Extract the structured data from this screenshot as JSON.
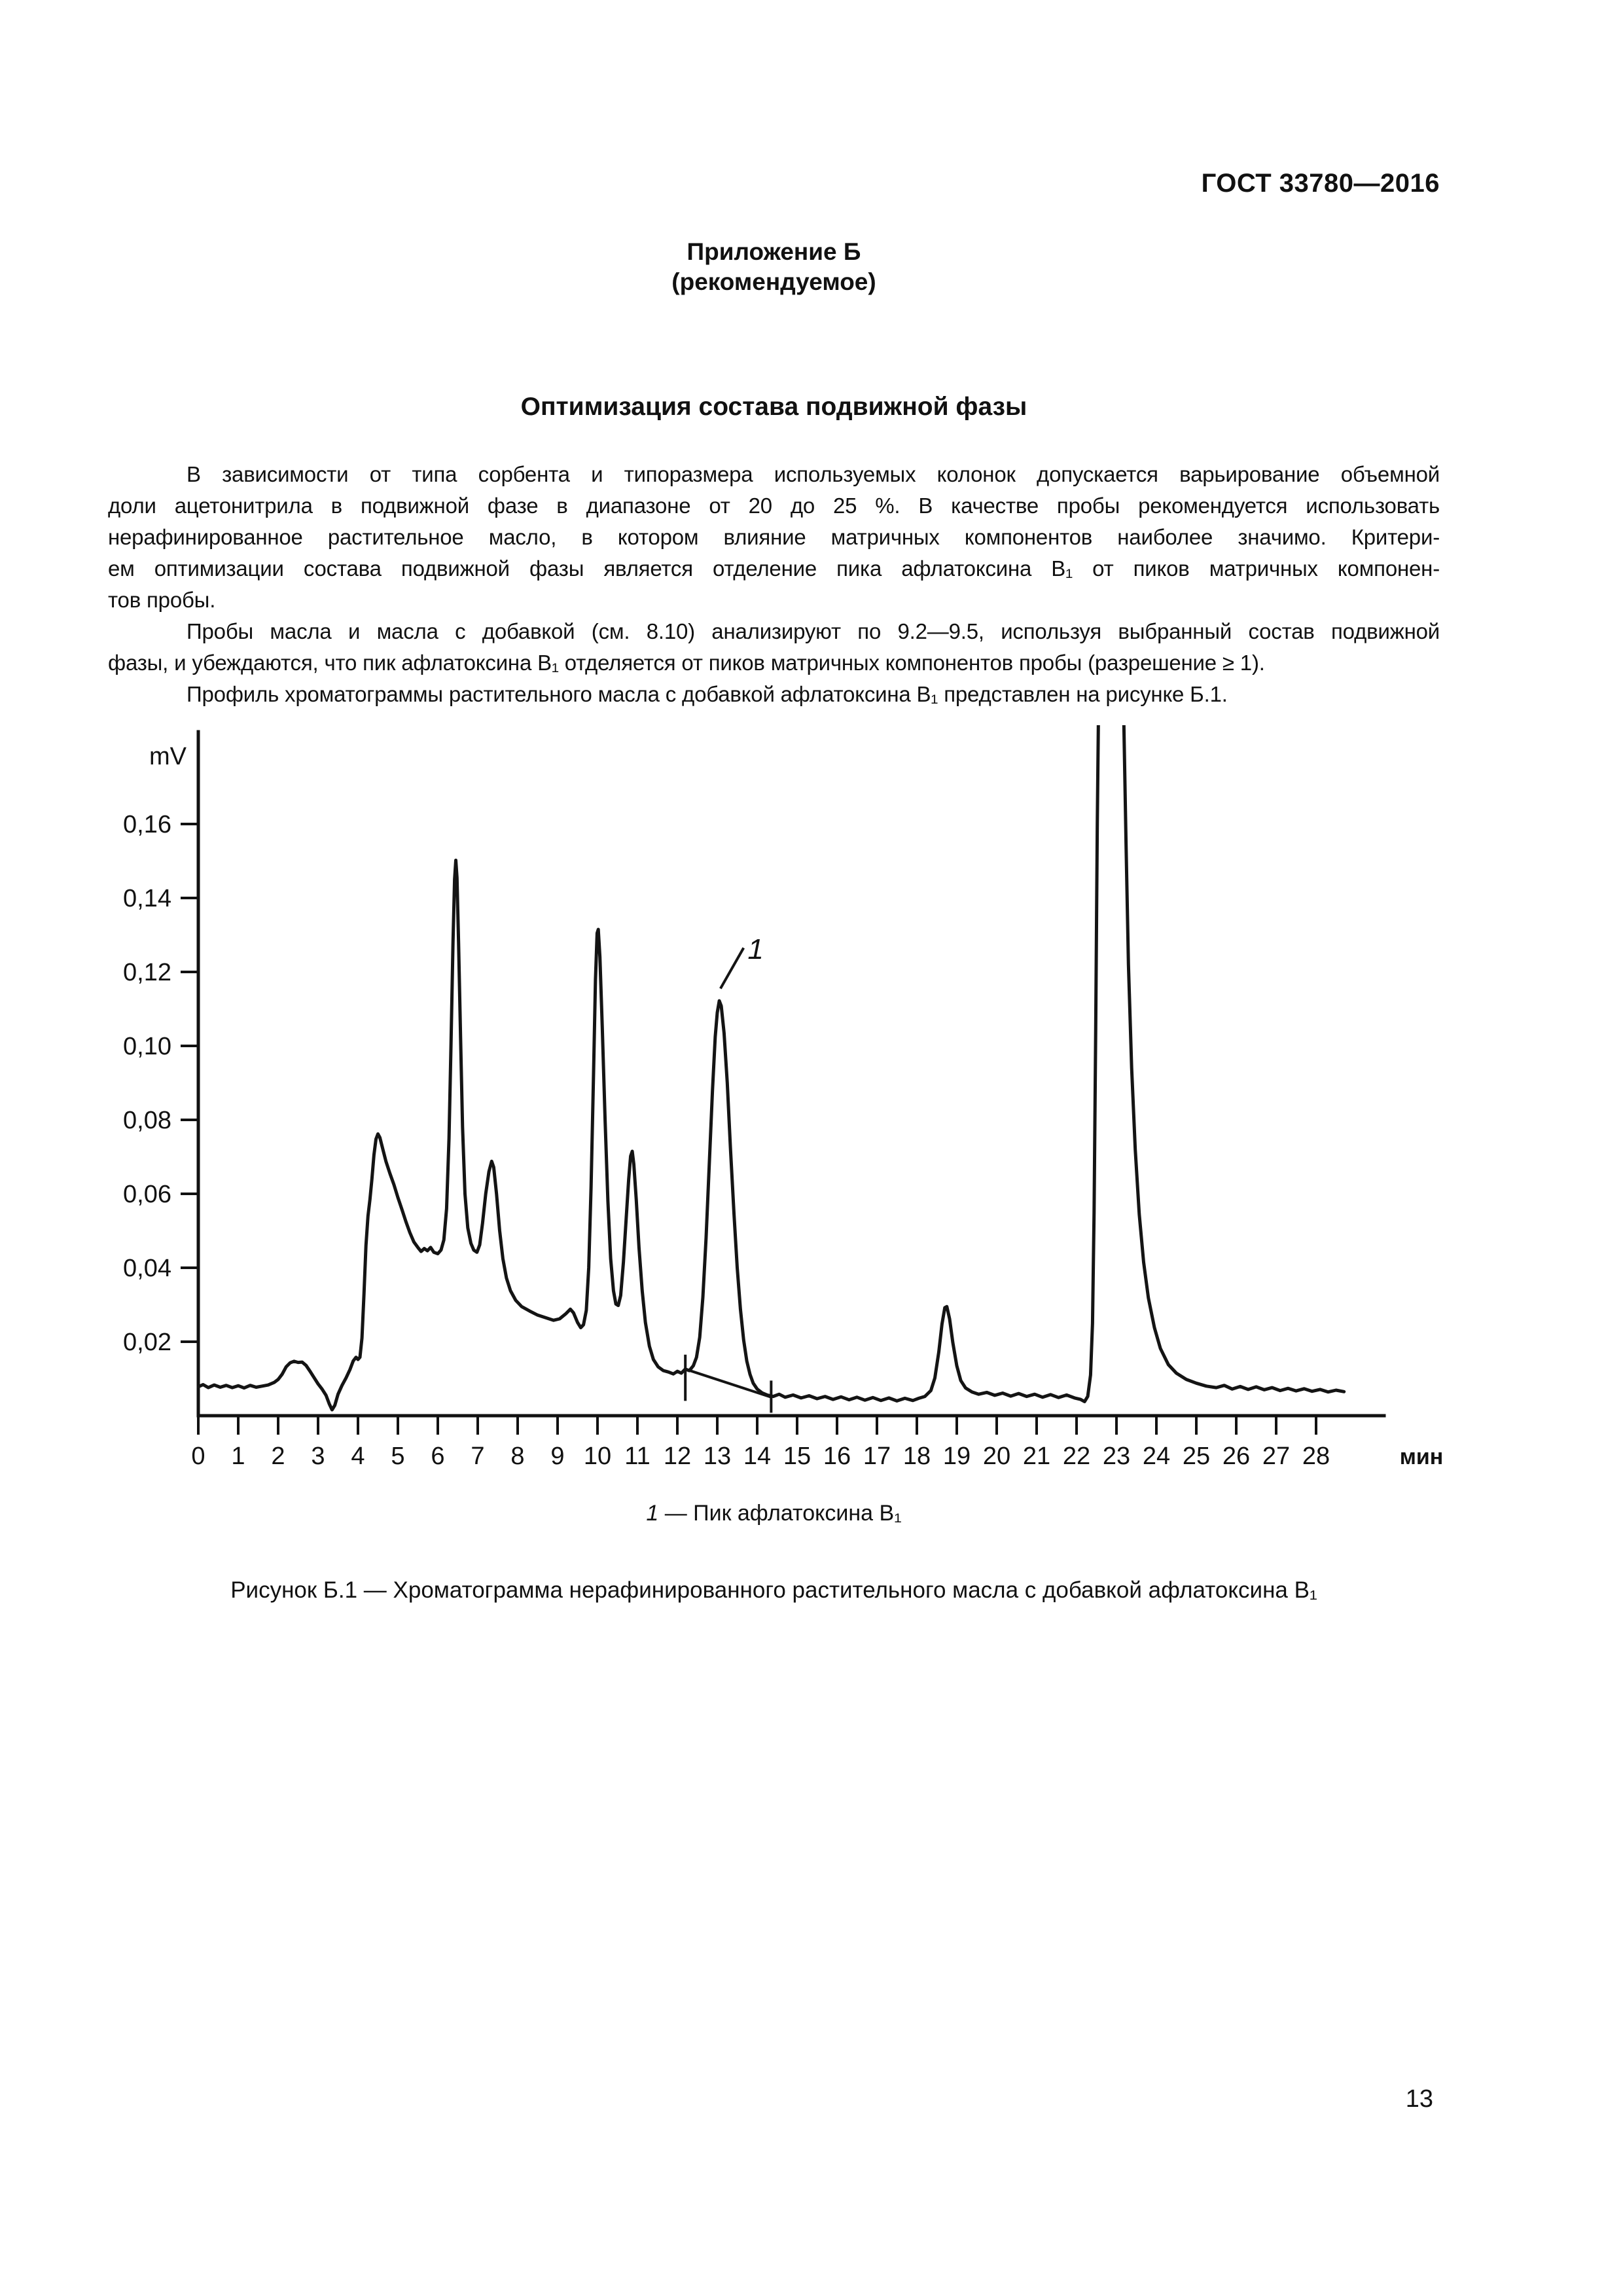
{
  "page": {
    "number": "13"
  },
  "header": {
    "doc_number": "ГОСТ 33780—2016"
  },
  "annex": {
    "title": "Приложение Б",
    "subtitle": "(рекомендуемое)"
  },
  "section": {
    "title": "Оптимизация состава подвижной фазы"
  },
  "body": {
    "lines": [
      {
        "text": "В зависимости от типа сорбента и типоразмера используемых колонок допускается варьирование объемной",
        "indent": true,
        "justify": true
      },
      {
        "text": "доли ацетонитрила в подвижной фазе в диапазоне от 20 до 25 %. В качестве пробы рекомендуется использовать",
        "indent": false,
        "justify": true
      },
      {
        "text": "нерафинированное растительное масло, в котором влияние матричных компонентов наиболее значимо. Критери-",
        "indent": false,
        "justify": true
      },
      {
        "text": "ем оптимизации состава подвижной фазы является отделение пика афлатоксина B₁ от пиков матричных компонен-",
        "indent": false,
        "justify": true
      },
      {
        "text": "тов пробы.",
        "indent": false,
        "justify": false
      },
      {
        "text": "Пробы масла и масла с добавкой (см. 8.10) анализируют по 9.2—9.5, используя выбранный состав подвижной",
        "indent": true,
        "justify": true
      },
      {
        "text": "фазы, и убеждаются, что пик афлатоксина B₁ отделяется от пиков матричных компонентов пробы (разрешение ≥ 1).",
        "indent": false,
        "justify": false
      },
      {
        "text": "Профиль хроматограммы растительного масла с добавкой афлатоксина B₁ представлен на рисунке Б.1.",
        "indent": true,
        "justify": false
      }
    ]
  },
  "figure": {
    "legend_num": "1",
    "legend_text": " — Пик афлатоксина B₁",
    "caption": "Рисунок  Б.1 — Хроматограмма нерафинированного растительного масла с добавкой афлатоксина B₁"
  },
  "chart_data": {
    "type": "line",
    "title": "",
    "xlabel": "мин",
    "ylabel": "mV",
    "x_range": [
      0,
      29
    ],
    "y_range": [
      0,
      0.186
    ],
    "grid": false,
    "legend_position": "below",
    "axis_color": "#111111",
    "trace_color": "#141414",
    "x_ticks": [
      0,
      1,
      2,
      3,
      4,
      5,
      6,
      7,
      8,
      9,
      10,
      11,
      12,
      13,
      14,
      15,
      16,
      17,
      18,
      19,
      20,
      21,
      22,
      23,
      24,
      25,
      26,
      27,
      28
    ],
    "y_ticks": [
      {
        "v": 0.02,
        "label": "0,02"
      },
      {
        "v": 0.04,
        "label": "0,04"
      },
      {
        "v": 0.06,
        "label": "0,06"
      },
      {
        "v": 0.08,
        "label": "0,08"
      },
      {
        "v": 0.1,
        "label": "0,10"
      },
      {
        "v": 0.12,
        "label": "0,12"
      },
      {
        "v": 0.14,
        "label": "0,14"
      },
      {
        "v": 0.16,
        "label": "0,16"
      }
    ],
    "peaks_summary": [
      {
        "t": 4.5,
        "mv": 0.076
      },
      {
        "t": 6.45,
        "mv": 0.15
      },
      {
        "t": 7.35,
        "mv": 0.069
      },
      {
        "t": 10.0,
        "mv": 0.132
      },
      {
        "t": 10.87,
        "mv": 0.072
      },
      {
        "t": 13.05,
        "mv": 0.112,
        "name": "aflatoxin B1 (peak 1)"
      },
      {
        "t": 18.75,
        "mv": 0.03
      },
      {
        "t": 23.0,
        "mv": 0.186,
        "clipped": true
      }
    ],
    "series": [
      {
        "name": "chromatogram",
        "points": [
          [
            0,
            0.0078
          ],
          [
            0.12,
            0.0084
          ],
          [
            0.25,
            0.0076
          ],
          [
            0.4,
            0.0083
          ],
          [
            0.55,
            0.0077
          ],
          [
            0.7,
            0.0082
          ],
          [
            0.85,
            0.0076
          ],
          [
            1.0,
            0.0081
          ],
          [
            1.15,
            0.0075
          ],
          [
            1.3,
            0.0082
          ],
          [
            1.45,
            0.0077
          ],
          [
            1.6,
            0.008
          ],
          [
            1.75,
            0.0083
          ],
          [
            1.9,
            0.009
          ],
          [
            2.0,
            0.0098
          ],
          [
            2.1,
            0.0112
          ],
          [
            2.2,
            0.0132
          ],
          [
            2.3,
            0.0143
          ],
          [
            2.4,
            0.0147
          ],
          [
            2.5,
            0.0144
          ],
          [
            2.6,
            0.0145
          ],
          [
            2.7,
            0.0136
          ],
          [
            2.8,
            0.012
          ],
          [
            2.9,
            0.0103
          ],
          [
            3.0,
            0.0086
          ],
          [
            3.1,
            0.0072
          ],
          [
            3.2,
            0.0055
          ],
          [
            3.28,
            0.0032
          ],
          [
            3.35,
            0.0016
          ],
          [
            3.42,
            0.0028
          ],
          [
            3.5,
            0.0058
          ],
          [
            3.6,
            0.0082
          ],
          [
            3.7,
            0.0102
          ],
          [
            3.8,
            0.0125
          ],
          [
            3.88,
            0.0148
          ],
          [
            3.95,
            0.0158
          ],
          [
            4.0,
            0.0152
          ],
          [
            4.05,
            0.0158
          ],
          [
            4.1,
            0.021
          ],
          [
            4.15,
            0.033
          ],
          [
            4.2,
            0.046
          ],
          [
            4.25,
            0.054
          ],
          [
            4.3,
            0.0585
          ],
          [
            4.35,
            0.064
          ],
          [
            4.4,
            0.0705
          ],
          [
            4.45,
            0.0748
          ],
          [
            4.5,
            0.0762
          ],
          [
            4.55,
            0.0752
          ],
          [
            4.62,
            0.0722
          ],
          [
            4.7,
            0.0688
          ],
          [
            4.8,
            0.0655
          ],
          [
            4.9,
            0.0625
          ],
          [
            5.0,
            0.059
          ],
          [
            5.1,
            0.0558
          ],
          [
            5.2,
            0.0525
          ],
          [
            5.3,
            0.0495
          ],
          [
            5.4,
            0.047
          ],
          [
            5.5,
            0.0455
          ],
          [
            5.58,
            0.0444
          ],
          [
            5.66,
            0.0452
          ],
          [
            5.74,
            0.0446
          ],
          [
            5.82,
            0.0455
          ],
          [
            5.9,
            0.0442
          ],
          [
            6.0,
            0.0438
          ],
          [
            6.08,
            0.0448
          ],
          [
            6.15,
            0.0475
          ],
          [
            6.22,
            0.056
          ],
          [
            6.28,
            0.075
          ],
          [
            6.33,
            0.1
          ],
          [
            6.38,
            0.128
          ],
          [
            6.42,
            0.145
          ],
          [
            6.45,
            0.1502
          ],
          [
            6.48,
            0.1455
          ],
          [
            6.52,
            0.128
          ],
          [
            6.57,
            0.102
          ],
          [
            6.62,
            0.078
          ],
          [
            6.68,
            0.06
          ],
          [
            6.75,
            0.0508
          ],
          [
            6.83,
            0.0466
          ],
          [
            6.9,
            0.0448
          ],
          [
            6.98,
            0.0442
          ],
          [
            7.05,
            0.0462
          ],
          [
            7.12,
            0.052
          ],
          [
            7.2,
            0.06
          ],
          [
            7.28,
            0.066
          ],
          [
            7.35,
            0.0688
          ],
          [
            7.4,
            0.0672
          ],
          [
            7.47,
            0.06
          ],
          [
            7.55,
            0.05
          ],
          [
            7.63,
            0.0425
          ],
          [
            7.72,
            0.0372
          ],
          [
            7.82,
            0.0338
          ],
          [
            7.95,
            0.0312
          ],
          [
            8.1,
            0.0295
          ],
          [
            8.3,
            0.0283
          ],
          [
            8.5,
            0.0272
          ],
          [
            8.7,
            0.0265
          ],
          [
            8.9,
            0.0258
          ],
          [
            9.05,
            0.0262
          ],
          [
            9.2,
            0.0275
          ],
          [
            9.32,
            0.0288
          ],
          [
            9.4,
            0.0278
          ],
          [
            9.5,
            0.0252
          ],
          [
            9.58,
            0.0238
          ],
          [
            9.65,
            0.0246
          ],
          [
            9.72,
            0.0285
          ],
          [
            9.78,
            0.04
          ],
          [
            9.84,
            0.062
          ],
          [
            9.9,
            0.092
          ],
          [
            9.95,
            0.118
          ],
          [
            9.99,
            0.1305
          ],
          [
            10.02,
            0.1315
          ],
          [
            10.06,
            0.124
          ],
          [
            10.12,
            0.105
          ],
          [
            10.19,
            0.08
          ],
          [
            10.26,
            0.058
          ],
          [
            10.33,
            0.0425
          ],
          [
            10.4,
            0.0338
          ],
          [
            10.46,
            0.0302
          ],
          [
            10.52,
            0.0298
          ],
          [
            10.58,
            0.0325
          ],
          [
            10.65,
            0.0415
          ],
          [
            10.72,
            0.0535
          ],
          [
            10.78,
            0.0638
          ],
          [
            10.83,
            0.0702
          ],
          [
            10.87,
            0.0715
          ],
          [
            10.91,
            0.068
          ],
          [
            10.97,
            0.0585
          ],
          [
            11.04,
            0.0455
          ],
          [
            11.12,
            0.0338
          ],
          [
            11.2,
            0.0252
          ],
          [
            11.3,
            0.0188
          ],
          [
            11.4,
            0.0152
          ],
          [
            11.52,
            0.0132
          ],
          [
            11.65,
            0.0122
          ],
          [
            11.78,
            0.0118
          ],
          [
            11.9,
            0.0113
          ],
          [
            12.0,
            0.012
          ],
          [
            12.1,
            0.0115
          ],
          [
            12.2,
            0.0126
          ],
          [
            12.3,
            0.0122
          ],
          [
            12.4,
            0.0135
          ],
          [
            12.48,
            0.0158
          ],
          [
            12.56,
            0.0212
          ],
          [
            12.64,
            0.032
          ],
          [
            12.72,
            0.048
          ],
          [
            12.8,
            0.068
          ],
          [
            12.88,
            0.088
          ],
          [
            12.95,
            0.1025
          ],
          [
            13.0,
            0.109
          ],
          [
            13.05,
            0.1122
          ],
          [
            13.1,
            0.1108
          ],
          [
            13.17,
            0.1035
          ],
          [
            13.25,
            0.09
          ],
          [
            13.33,
            0.0725
          ],
          [
            13.42,
            0.0545
          ],
          [
            13.5,
            0.04
          ],
          [
            13.58,
            0.0288
          ],
          [
            13.66,
            0.0205
          ],
          [
            13.74,
            0.0148
          ],
          [
            13.82,
            0.0112
          ],
          [
            13.9,
            0.0088
          ],
          [
            14.0,
            0.0072
          ],
          [
            14.12,
            0.0062
          ],
          [
            14.25,
            0.0056
          ],
          [
            14.4,
            0.0052
          ],
          [
            14.55,
            0.0058
          ],
          [
            14.7,
            0.005
          ],
          [
            14.9,
            0.0056
          ],
          [
            15.1,
            0.0048
          ],
          [
            15.3,
            0.0054
          ],
          [
            15.5,
            0.0046
          ],
          [
            15.7,
            0.0052
          ],
          [
            15.9,
            0.0044
          ],
          [
            16.1,
            0.0051
          ],
          [
            16.3,
            0.0043
          ],
          [
            16.5,
            0.005
          ],
          [
            16.7,
            0.0042
          ],
          [
            16.9,
            0.0049
          ],
          [
            17.1,
            0.0041
          ],
          [
            17.3,
            0.0048
          ],
          [
            17.5,
            0.004
          ],
          [
            17.7,
            0.0047
          ],
          [
            17.9,
            0.0041
          ],
          [
            18.05,
            0.0047
          ],
          [
            18.2,
            0.0052
          ],
          [
            18.35,
            0.0068
          ],
          [
            18.45,
            0.0102
          ],
          [
            18.55,
            0.0172
          ],
          [
            18.63,
            0.0248
          ],
          [
            18.7,
            0.0292
          ],
          [
            18.75,
            0.0295
          ],
          [
            18.82,
            0.0262
          ],
          [
            18.9,
            0.0198
          ],
          [
            19.0,
            0.0135
          ],
          [
            19.1,
            0.0095
          ],
          [
            19.22,
            0.0075
          ],
          [
            19.38,
            0.0064
          ],
          [
            19.55,
            0.0058
          ],
          [
            19.75,
            0.0063
          ],
          [
            19.95,
            0.0055
          ],
          [
            20.15,
            0.0061
          ],
          [
            20.35,
            0.0053
          ],
          [
            20.55,
            0.006
          ],
          [
            20.75,
            0.0052
          ],
          [
            20.95,
            0.0058
          ],
          [
            21.15,
            0.005
          ],
          [
            21.35,
            0.0057
          ],
          [
            21.55,
            0.0049
          ],
          [
            21.75,
            0.0056
          ],
          [
            21.95,
            0.0048
          ],
          [
            22.1,
            0.0044
          ],
          [
            22.2,
            0.0038
          ],
          [
            22.28,
            0.0052
          ],
          [
            22.35,
            0.011
          ],
          [
            22.4,
            0.025
          ],
          [
            22.44,
            0.055
          ],
          [
            22.48,
            0.105
          ],
          [
            22.52,
            0.16
          ],
          [
            22.55,
            0.19
          ],
          [
            23.18,
            0.19
          ],
          [
            23.24,
            0.155
          ],
          [
            23.3,
            0.122
          ],
          [
            23.38,
            0.094
          ],
          [
            23.47,
            0.072
          ],
          [
            23.57,
            0.0545
          ],
          [
            23.68,
            0.0415
          ],
          [
            23.8,
            0.0318
          ],
          [
            23.95,
            0.0238
          ],
          [
            24.1,
            0.0182
          ],
          [
            24.3,
            0.0138
          ],
          [
            24.5,
            0.0115
          ],
          [
            24.75,
            0.0098
          ],
          [
            25.0,
            0.0088
          ],
          [
            25.25,
            0.008
          ],
          [
            25.5,
            0.0076
          ],
          [
            25.7,
            0.0082
          ],
          [
            25.9,
            0.0072
          ],
          [
            26.1,
            0.0079
          ],
          [
            26.3,
            0.0071
          ],
          [
            26.5,
            0.0078
          ],
          [
            26.7,
            0.007
          ],
          [
            26.9,
            0.0076
          ],
          [
            27.1,
            0.0068
          ],
          [
            27.3,
            0.0074
          ],
          [
            27.5,
            0.0067
          ],
          [
            27.7,
            0.0073
          ],
          [
            27.9,
            0.0066
          ],
          [
            28.1,
            0.0071
          ],
          [
            28.3,
            0.0064
          ],
          [
            28.5,
            0.0069
          ],
          [
            28.7,
            0.0065
          ]
        ]
      }
    ],
    "integration_baseline": {
      "from": [
        12.2,
        0.0126
      ],
      "to": [
        14.35,
        0.005
      ],
      "drop_ticks": [
        {
          "t": 12.2,
          "v1": 0.004,
          "v2": 0.0165
        },
        {
          "t": 14.35,
          "v1": 0.0008,
          "v2": 0.0095
        }
      ]
    },
    "annotation": {
      "label": "1",
      "label_t": 13.76,
      "label_v": 0.1235,
      "leader": [
        [
          13.08,
          0.1155
        ],
        [
          13.66,
          0.1265
        ]
      ]
    }
  }
}
